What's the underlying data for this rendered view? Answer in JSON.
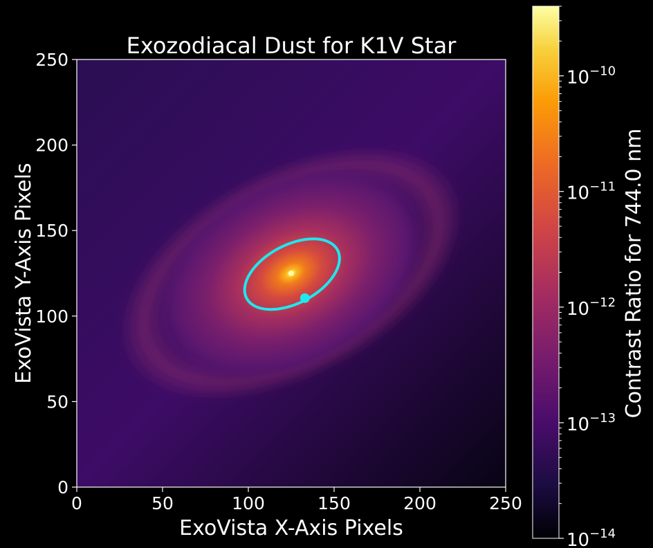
{
  "chart_data": {
    "type": "heatmap",
    "title": "Exozodiacal Dust for K1V Star",
    "xlabel": "ExoVista X-Axis Pixels",
    "ylabel": "ExoVista Y-Axis Pixels",
    "xlim": [
      0,
      250
    ],
    "ylim": [
      0,
      250
    ],
    "xticks": [
      "0",
      "50",
      "100",
      "150",
      "200",
      "250"
    ],
    "yticks": [
      "0",
      "50",
      "100",
      "150",
      "200",
      "250"
    ],
    "x_tick_values": [
      0,
      50,
      100,
      150,
      200,
      250
    ],
    "y_tick_values": [
      0,
      50,
      100,
      150,
      200,
      250
    ],
    "colormap": "inferno",
    "colorbar": {
      "label": "Contrast Ratio for 744.0 nm",
      "scale": "log",
      "range": [
        1e-14,
        4e-10
      ],
      "ticks": [
        {
          "value": 1e-10,
          "base": "10",
          "exp": "−10"
        },
        {
          "value": 1e-11,
          "base": "10",
          "exp": "−11"
        },
        {
          "value": 1e-12,
          "base": "10",
          "exp": "−12"
        },
        {
          "value": 1e-13,
          "base": "10",
          "exp": "−13"
        },
        {
          "value": 1e-14,
          "base": "10",
          "exp": "−14"
        }
      ]
    },
    "star_center": [
      125,
      125
    ],
    "orbit": {
      "color": "#1ee8ee",
      "center": [
        125.5,
        124.5
      ],
      "semi_major": 30,
      "semi_minor": 17,
      "angle_deg": 28
    },
    "planet": {
      "x": 133,
      "y": 110.5,
      "color": "#1ee8ee"
    }
  }
}
